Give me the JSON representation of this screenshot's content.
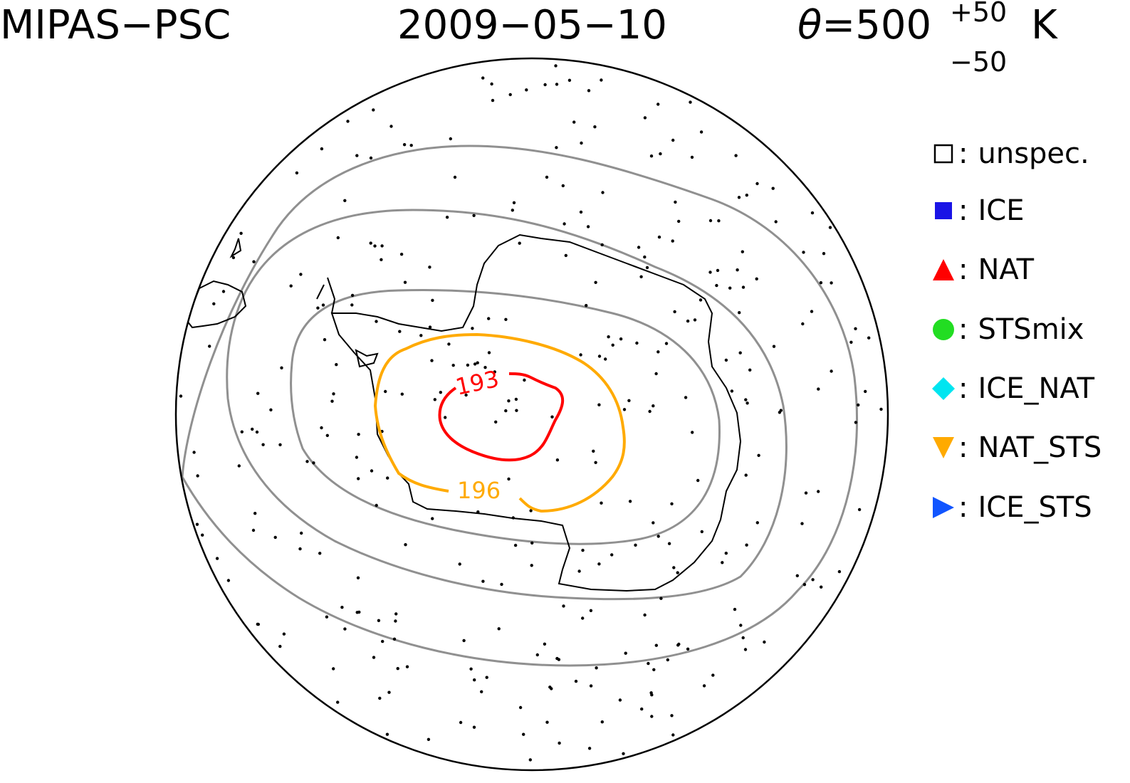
{
  "title": {
    "left": "MIPAS−PSC",
    "center": "2009−05−10",
    "theta_symbol": "θ",
    "theta_eq": "=500",
    "theta_sup": "+50",
    "theta_sub": "−50",
    "theta_unit": "K"
  },
  "legend": [
    {
      "label": "unspec.",
      "marker": "open-square-icon",
      "color": "#000000"
    },
    {
      "label": "ICE",
      "marker": "filled-square-icon",
      "color": "#1a14e6"
    },
    {
      "label": "NAT",
      "marker": "triangle-up-icon",
      "color": "#ff0000"
    },
    {
      "label": "STSmix",
      "marker": "circle-icon",
      "color": "#22dd22"
    },
    {
      "label": "ICE_NAT",
      "marker": "diamond-icon",
      "color": "#00e5f0"
    },
    {
      "label": "NAT_STS",
      "marker": "triangle-down-icon",
      "color": "#ffaa00"
    },
    {
      "label": "ICE_STS",
      "marker": "triangle-right-icon",
      "color": "#1155ff"
    }
  ],
  "contours": [
    {
      "value": "193",
      "color": "#ff0000"
    },
    {
      "value": "196",
      "color": "#ffaa00"
    }
  ],
  "colors": {
    "map_outline": "#000000",
    "graticule": "#909090",
    "coastline": "#000000",
    "observation": "#000000"
  }
}
